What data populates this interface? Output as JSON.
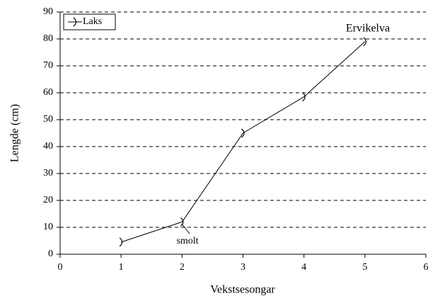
{
  "chart_data": {
    "type": "line",
    "x_label": "Vekstsesongar",
    "y_label": "Lengde (cm)",
    "series": [
      {
        "name": "Laks",
        "color": "#000000",
        "x": [
          1,
          2,
          3,
          4,
          5
        ],
        "values": [
          4.5,
          12,
          45,
          58.5,
          79
        ]
      }
    ],
    "xlim": [
      0,
      6
    ],
    "xticks": [
      0,
      1,
      2,
      3,
      4,
      5,
      6
    ],
    "ylim": [
      0,
      90
    ],
    "yticks": [
      0,
      10,
      20,
      30,
      40,
      50,
      60,
      70,
      80,
      90
    ],
    "grid": true,
    "legend": "upper left",
    "annotations": [
      {
        "text": "Ervikelva"
      },
      {
        "text": "smolt"
      }
    ]
  }
}
